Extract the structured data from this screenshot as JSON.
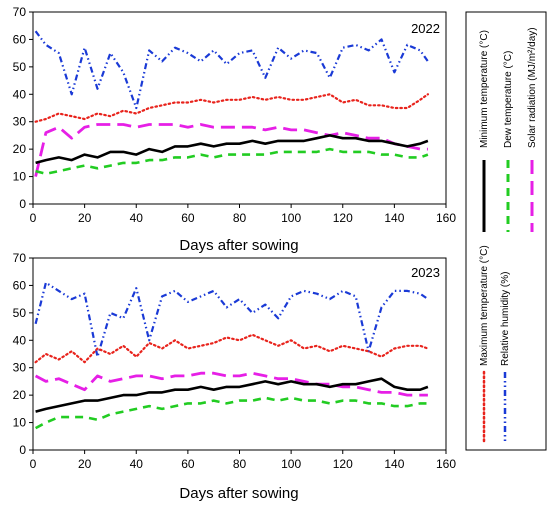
{
  "chart_data": [
    {
      "type": "line",
      "title": "2022",
      "xlabel": "Days after sowing",
      "ylabel": "",
      "xlim": [
        0,
        160
      ],
      "ylim": [
        0,
        70
      ],
      "xticks": [
        "0",
        "20",
        "40",
        "60",
        "80",
        "100",
        "120",
        "140",
        "160"
      ],
      "yticks": [
        "0",
        "10",
        "20",
        "30",
        "40",
        "50",
        "60",
        "70"
      ],
      "grid": false,
      "x": [
        1,
        5,
        10,
        15,
        20,
        25,
        30,
        35,
        40,
        45,
        50,
        55,
        60,
        65,
        70,
        75,
        80,
        85,
        90,
        95,
        100,
        105,
        110,
        115,
        120,
        125,
        130,
        135,
        140,
        145,
        150,
        153
      ],
      "series": [
        {
          "name": "Minimum temperature (°C)",
          "color": "#000000",
          "values": [
            15,
            16,
            17,
            16,
            18,
            17,
            19,
            19,
            18,
            20,
            19,
            21,
            21,
            22,
            21,
            22,
            22,
            23,
            22,
            23,
            23,
            23,
            24,
            25,
            24,
            24,
            23,
            23,
            22,
            21,
            22,
            23
          ]
        },
        {
          "name": "Maximum temperature (°C)",
          "color": "#e8231c",
          "values": [
            30,
            31,
            33,
            32,
            31,
            33,
            32,
            34,
            33,
            35,
            36,
            37,
            37,
            38,
            37,
            38,
            38,
            39,
            38,
            39,
            38,
            38,
            39,
            40,
            37,
            38,
            36,
            36,
            35,
            35,
            38,
            40
          ]
        },
        {
          "name": "Dew temperature (°C)",
          "color": "#22cc22",
          "values": [
            12,
            11,
            12,
            13,
            14,
            13,
            14,
            15,
            15,
            16,
            16,
            17,
            17,
            18,
            17,
            18,
            18,
            18,
            18,
            19,
            19,
            19,
            19,
            20,
            19,
            19,
            19,
            18,
            18,
            17,
            17,
            18
          ]
        },
        {
          "name": "Relative humidity (%)",
          "color": "#1a3ad6",
          "values": [
            63,
            58,
            55,
            40,
            57,
            42,
            55,
            48,
            35,
            56,
            52,
            57,
            55,
            52,
            56,
            51,
            55,
            56,
            46,
            57,
            53,
            56,
            55,
            46,
            57,
            58,
            56,
            60,
            48,
            58,
            56,
            52
          ]
        },
        {
          "name": "Solar radiation (MJ/m²/day)",
          "color": "#e61fe6",
          "values": [
            10,
            26,
            28,
            24,
            28,
            29,
            29,
            29,
            28,
            29,
            29,
            29,
            28,
            29,
            28,
            28,
            28,
            28,
            27,
            28,
            27,
            27,
            26,
            25,
            26,
            25,
            24,
            24,
            22,
            21,
            20,
            20
          ]
        }
      ]
    },
    {
      "type": "line",
      "title": "2023",
      "xlabel": "Days after sowing",
      "ylabel": "",
      "xlim": [
        0,
        160
      ],
      "ylim": [
        0,
        70
      ],
      "xticks": [
        "0",
        "20",
        "40",
        "60",
        "80",
        "100",
        "120",
        "140",
        "160"
      ],
      "yticks": [
        "0",
        "10",
        "20",
        "30",
        "40",
        "50",
        "60",
        "70"
      ],
      "grid": false,
      "x": [
        1,
        5,
        10,
        15,
        20,
        25,
        30,
        35,
        40,
        45,
        50,
        55,
        60,
        65,
        70,
        75,
        80,
        85,
        90,
        95,
        100,
        105,
        110,
        115,
        120,
        125,
        130,
        135,
        140,
        145,
        150,
        153
      ],
      "series": [
        {
          "name": "Minimum temperature (°C)",
          "color": "#000000",
          "values": [
            14,
            15,
            16,
            17,
            18,
            18,
            19,
            20,
            20,
            21,
            21,
            22,
            22,
            23,
            22,
            23,
            23,
            24,
            25,
            24,
            25,
            24,
            24,
            23,
            24,
            24,
            25,
            26,
            23,
            22,
            22,
            23
          ]
        },
        {
          "name": "Maximum temperature (°C)",
          "color": "#e8231c",
          "values": [
            32,
            35,
            33,
            36,
            32,
            37,
            35,
            38,
            34,
            39,
            37,
            40,
            37,
            38,
            39,
            41,
            40,
            42,
            40,
            38,
            40,
            37,
            38,
            36,
            38,
            37,
            36,
            34,
            37,
            38,
            38,
            37
          ]
        },
        {
          "name": "Dew temperature (°C)",
          "color": "#22cc22",
          "values": [
            8,
            10,
            12,
            12,
            12,
            11,
            13,
            14,
            15,
            16,
            15,
            16,
            17,
            17,
            18,
            17,
            18,
            18,
            19,
            18,
            19,
            18,
            18,
            17,
            18,
            18,
            17,
            17,
            16,
            16,
            17,
            17
          ]
        },
        {
          "name": "Relative humidity (%)",
          "color": "#1a3ad6",
          "values": [
            46,
            61,
            58,
            55,
            57,
            34,
            50,
            48,
            59,
            40,
            56,
            58,
            54,
            56,
            58,
            52,
            55,
            50,
            53,
            48,
            56,
            58,
            57,
            55,
            58,
            56,
            36,
            52,
            58,
            58,
            57,
            55
          ]
        },
        {
          "name": "Solar radiation (MJ/m²/day)",
          "color": "#e61fe6",
          "values": [
            27,
            25,
            26,
            24,
            22,
            27,
            25,
            26,
            27,
            27,
            26,
            27,
            27,
            28,
            28,
            27,
            27,
            28,
            27,
            26,
            26,
            25,
            24,
            24,
            23,
            23,
            22,
            21,
            21,
            20,
            20,
            20
          ]
        }
      ]
    }
  ],
  "legend_labels": [
    "Minimum temperature (°C)",
    "Dew temperature (°C)",
    "Solar radiation (MJ/m²/day)",
    "Maximum temperature (°C)",
    "Relative humidity (%)"
  ]
}
